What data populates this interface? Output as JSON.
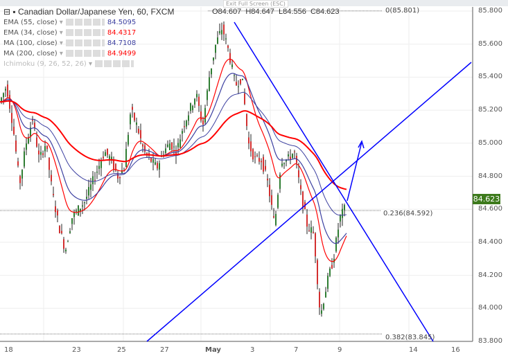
{
  "header": {
    "exit_fullscreen": "Exit Full Screen (ESC)",
    "title": "Canadian Dollar/Japanese Yen, 60, FXCM",
    "open": "O84.607",
    "high": "H84.647",
    "low": "L84.556",
    "close": "C84.623"
  },
  "indicators": [
    {
      "label": "EMA (55, close)",
      "value": "84.5095",
      "color": "#3b3fa0"
    },
    {
      "label": "EMA (34, close)",
      "value": "84.4317",
      "color": "#ff0000"
    },
    {
      "label": "MA (100, close)",
      "value": "84.7108",
      "color": "#3b3fa0"
    },
    {
      "label": "MA (200, close)",
      "value": "84.9499",
      "color": "#ff0000"
    },
    {
      "label": "Ichimoku (9, 26, 52, 26)",
      "value": "",
      "color": "#bbbbbb"
    }
  ],
  "fib_levels": [
    {
      "label": "0(85.801)",
      "price": 85.801
    },
    {
      "label": "0.236(84.592)",
      "price": 84.592
    },
    {
      "label": "0.382(83.845)",
      "price": 83.845
    }
  ],
  "current_price": "84.623",
  "colors": {
    "up": "#2e7d32",
    "down": "#d32f2f",
    "trendline": "#0000ff",
    "price_tag": "#3d7a1c"
  },
  "chart_data": {
    "type": "candlestick",
    "y_ticks": [
      "85.800",
      "85.600",
      "85.400",
      "85.200",
      "85.000",
      "84.800",
      "84.600",
      "84.400",
      "84.200",
      "84.000",
      "83.800"
    ],
    "ylim": [
      83.8,
      85.8
    ],
    "x_ticks": [
      "18",
      "23",
      "25",
      "27",
      "May",
      "3",
      "7",
      "9",
      "14",
      "16"
    ],
    "approx_close": [
      85.25,
      85.35,
      85.1,
      84.75,
      85.0,
      85.15,
      84.9,
      85.0,
      84.7,
      84.5,
      84.35,
      84.55,
      84.6,
      84.65,
      84.75,
      84.85,
      84.95,
      84.9,
      84.8,
      84.85,
      85.2,
      85.1,
      84.95,
      84.9,
      84.85,
      84.95,
      85.0,
      84.95,
      85.1,
      85.2,
      85.3,
      85.1,
      85.4,
      85.6,
      85.7,
      85.55,
      85.35,
      85.4,
      85.0,
      84.9,
      84.9,
      84.75,
      84.5,
      84.9,
      84.9,
      84.95,
      84.7,
      84.5,
      84.45,
      83.95,
      84.15,
      84.3,
      84.55,
      84.623
    ],
    "grid": true
  }
}
